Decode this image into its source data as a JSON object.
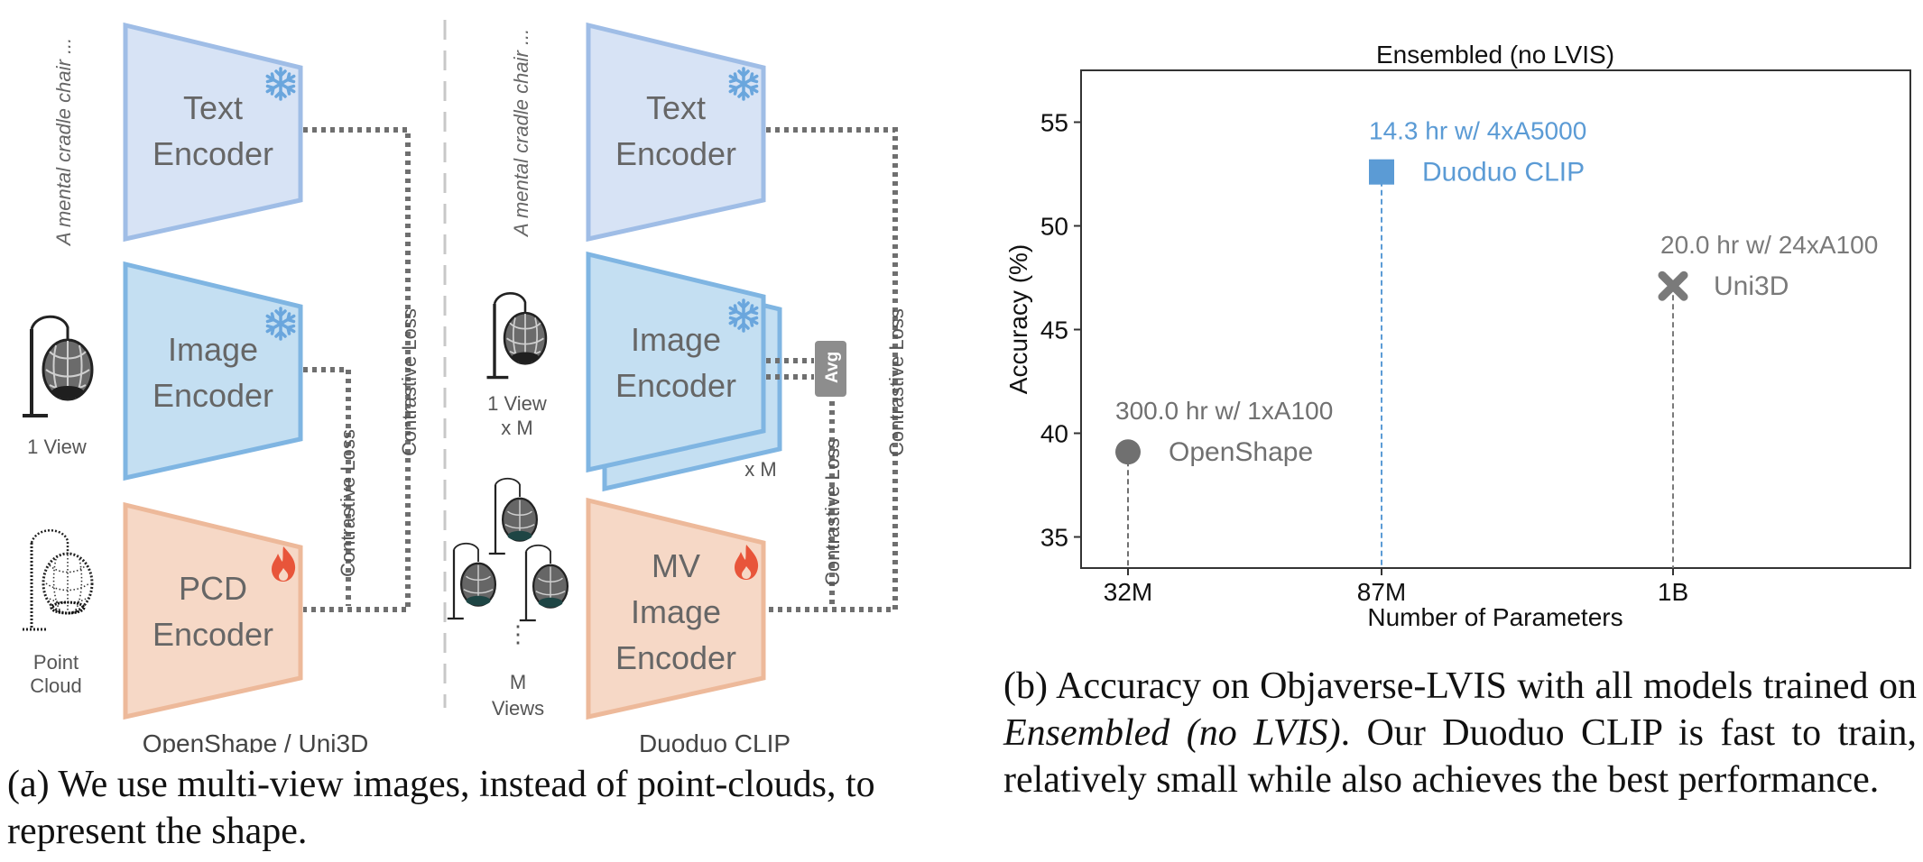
{
  "diagram": {
    "left_panel": {
      "label": "OpenShape / Uni3D",
      "text_prompt": "A mental cradle chair ...",
      "text_encoder_label": [
        "Text",
        "Encoder"
      ],
      "image_encoder_label": [
        "Image",
        "Encoder"
      ],
      "pcd_encoder_label": [
        "PCD",
        "Encoder"
      ],
      "view_label": "1 View",
      "pcd_label": [
        "Point",
        "Cloud"
      ],
      "loss_inner": "Contrastive Loss",
      "loss_outer": "Contrastive Loss"
    },
    "right_panel": {
      "label": "Duoduo CLIP",
      "text_prompt": "A mental cradle chair ...",
      "text_encoder_label": [
        "Text",
        "Encoder"
      ],
      "image_encoder_label": [
        "Image",
        "Encoder"
      ],
      "mv_encoder_label": [
        "MV",
        "Image",
        "Encoder"
      ],
      "view_label": [
        "1 View",
        "x M"
      ],
      "stack_label": "x M",
      "avg_label": "Avg",
      "views_label": [
        "M",
        "Views"
      ],
      "loss_inner": "Contrastive Loss",
      "loss_outer": "Contrastive Loss"
    },
    "colors": {
      "text_encoder_fill": "#d7e3f5",
      "text_encoder_stroke": "#9fbde6",
      "image_encoder_fill": "#c4dff2",
      "image_encoder_stroke": "#7fb5e2",
      "pcd_fill": "#f6d8c6",
      "pcd_stroke": "#edb99a",
      "flame": "#e8553a",
      "snowflake": "#6aa6dd",
      "dotted_line": "#6f6f6f"
    },
    "icons": {
      "frozen": "snowflake-icon",
      "trainable": "flame-icon"
    }
  },
  "chart": {
    "chart_data": {
      "type": "scatter",
      "title": "Ensembled (no LVIS)",
      "xlabel": "Number of Parameters",
      "ylabel": "Accuracy (%)",
      "categories": [
        "32M",
        "87M",
        "1B"
      ],
      "ylim": [
        33.5,
        57.5
      ],
      "yticks": [
        35,
        40,
        45,
        50,
        55
      ],
      "points": [
        {
          "name": "OpenShape",
          "x": "32M",
          "y": 39.1,
          "annotation": "300.0 hr w/ 1xA100",
          "marker": "circle",
          "color": "#707070"
        },
        {
          "name": "Duoduo CLIP",
          "x": "87M",
          "y": 52.6,
          "annotation": "14.3 hr w/ 4xA5000",
          "marker": "square",
          "color": "#5b9bd5"
        },
        {
          "name": "Uni3D",
          "x": "1B",
          "y": 47.1,
          "annotation": "20.0 hr w/ 24xA100",
          "marker": "x",
          "color": "#7a7a7a"
        }
      ]
    }
  },
  "captions": {
    "a": "(a) We use multi-view images, instead of point-clouds, to represent the shape.",
    "b_prefix": "(b) Accuracy on Objaverse-LVIS with all models trained on ",
    "b_emph": "Ensembled (no LVIS)",
    "b_suffix": ". Our Duoduo CLIP is fast to train, relatively small while also achieves the best performance."
  }
}
